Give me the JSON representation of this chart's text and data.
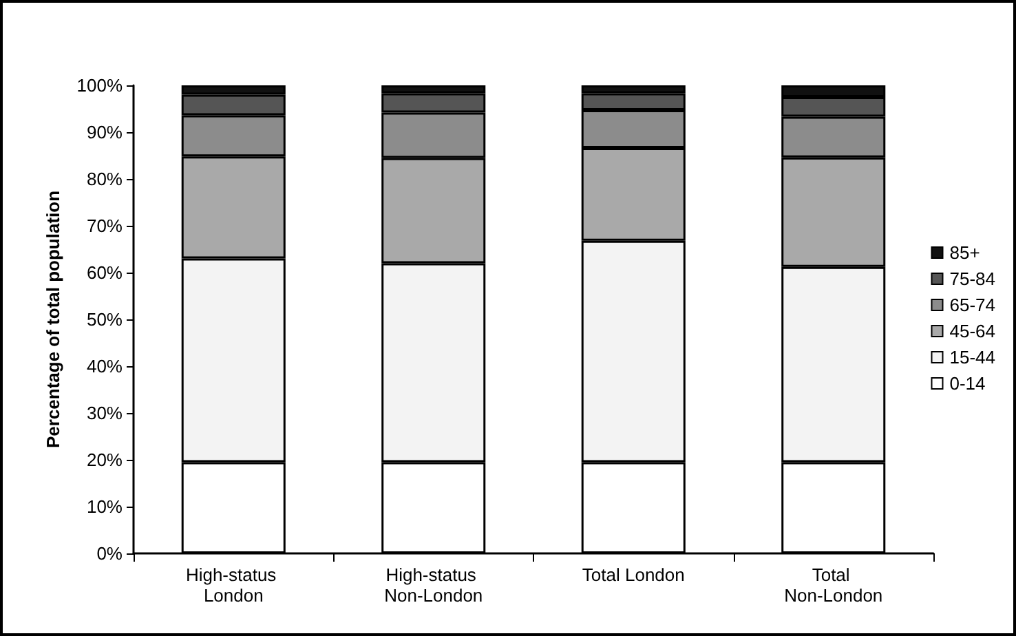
{
  "chart_data": {
    "type": "bar",
    "stacked": true,
    "ylabel": "Percentage of total population",
    "categories": [
      "High-status London",
      "High-status Non-London",
      "Total London",
      "Total Non-London"
    ],
    "series": [
      {
        "name": "0-14",
        "color": "#ffffff",
        "values": [
          19.5,
          19.5,
          19.5,
          19.5
        ]
      },
      {
        "name": "15-44",
        "color": "#f3f3f3",
        "values": [
          43.5,
          42.5,
          47.3,
          41.7
        ]
      },
      {
        "name": "45-64",
        "color": "#a9a9a9",
        "values": [
          21.8,
          22.5,
          19.8,
          23.4
        ]
      },
      {
        "name": "65-74",
        "color": "#8c8c8c",
        "values": [
          8.8,
          9.7,
          8.1,
          8.7
        ]
      },
      {
        "name": "75-84",
        "color": "#555555",
        "values": [
          4.4,
          4.1,
          3.6,
          4.2
        ]
      },
      {
        "name": "85+",
        "color": "#111111",
        "values": [
          2.0,
          1.7,
          1.7,
          2.5
        ]
      }
    ],
    "ylim": [
      0,
      100
    ],
    "yticks": [
      {
        "value": 0,
        "label": "0%"
      },
      {
        "value": 10,
        "label": "10%"
      },
      {
        "value": 20,
        "label": "20%"
      },
      {
        "value": 30,
        "label": "30%"
      },
      {
        "value": 40,
        "label": "40%"
      },
      {
        "value": 50,
        "label": "50%"
      },
      {
        "value": 60,
        "label": "60%"
      },
      {
        "value": 70,
        "label": "70%"
      },
      {
        "value": 80,
        "label": "80%"
      },
      {
        "value": 90,
        "label": "90%"
      },
      {
        "value": 100,
        "label": "100%"
      }
    ],
    "grid": false,
    "legend": "right"
  }
}
